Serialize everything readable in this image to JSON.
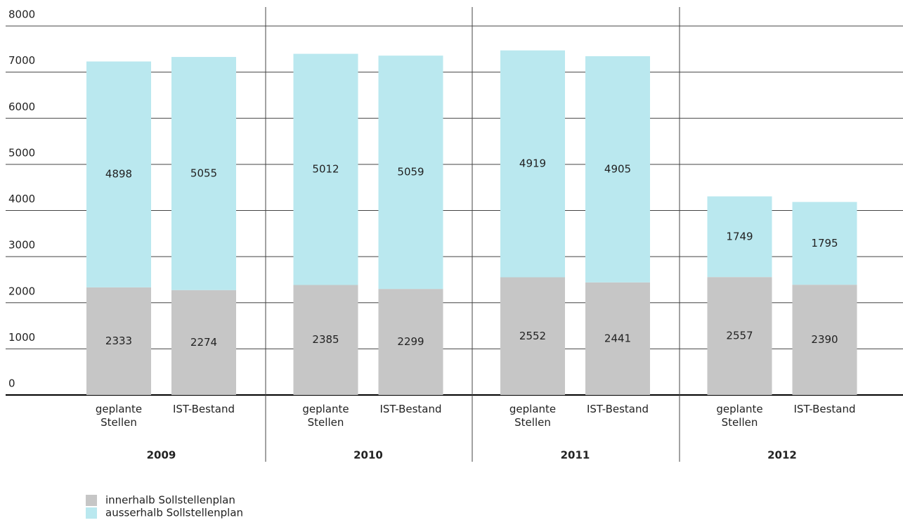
{
  "chart_data": {
    "type": "stacked_bar",
    "categories": [
      "geplante Stellen",
      "IST-Bestand",
      "geplante Stellen",
      "IST-Bestand",
      "geplante Stellen",
      "IST-Bestand",
      "geplante Stellen",
      "IST-Bestand"
    ],
    "groups": [
      "2009",
      "2010",
      "2011",
      "2012"
    ],
    "series": [
      {
        "name": "innerhalb Sollstellenplan",
        "color": "#c6c6c6",
        "values": [
          2333,
          2274,
          2385,
          2299,
          2552,
          2441,
          2557,
          2390
        ]
      },
      {
        "name": "ausserhalb Sollstellenplan",
        "color": "#bae8ef",
        "values": [
          4898,
          5055,
          5012,
          5059,
          4919,
          4905,
          1749,
          1795
        ]
      }
    ],
    "ylim": [
      0,
      8000
    ],
    "yticks": [
      0,
      1000,
      2000,
      3000,
      4000,
      5000,
      6000,
      7000,
      8000
    ],
    "grid": true,
    "legend": "bottom-left"
  }
}
